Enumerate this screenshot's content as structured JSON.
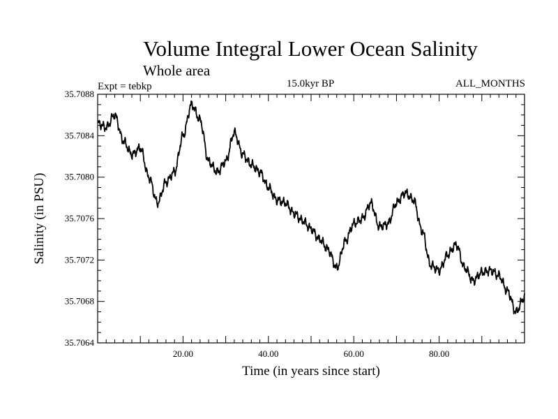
{
  "chart_data": {
    "type": "line",
    "title": "Volume Integral Lower Ocean Salinity",
    "subtitle": "Whole area",
    "experiment": "Expt = tebkp",
    "period": "15.0kyr BP",
    "months": "ALL_MONTHS",
    "xlabel": "Time (in years since start)",
    "ylabel": "Salinity (in PSU)",
    "xlim": [
      0,
      100
    ],
    "ylim": [
      35.7064,
      35.7088
    ],
    "x_ticks": [
      "20.00",
      "40.00",
      "60.00",
      "80.00"
    ],
    "y_ticks": [
      "35.7064",
      "35.7068",
      "35.7072",
      "35.7076",
      "35.7080",
      "35.7084",
      "35.7088"
    ],
    "series": [
      {
        "name": "salinity",
        "x": [
          0,
          2,
          4,
          6,
          8,
          10,
          12,
          14,
          16,
          18,
          20,
          22,
          24,
          26,
          28,
          30,
          32,
          34,
          36,
          38,
          40,
          42,
          44,
          46,
          48,
          50,
          52,
          54,
          56,
          58,
          60,
          62,
          64,
          66,
          68,
          70,
          72,
          74,
          76,
          78,
          80,
          82,
          84,
          86,
          88,
          90,
          92,
          94,
          96,
          98,
          100
        ],
        "y": [
          35.70852,
          35.70848,
          35.7086,
          35.70835,
          35.70822,
          35.70828,
          35.708,
          35.70775,
          35.70795,
          35.70805,
          35.7084,
          35.7087,
          35.70855,
          35.70815,
          35.70805,
          35.70815,
          35.70843,
          35.70822,
          35.70812,
          35.70805,
          35.7079,
          35.70778,
          35.70775,
          35.70765,
          35.70758,
          35.7075,
          35.7074,
          35.7073,
          35.70712,
          35.70738,
          35.70755,
          35.7076,
          35.70775,
          35.70752,
          35.70755,
          35.70775,
          35.70785,
          35.70778,
          35.70748,
          35.70715,
          35.7071,
          35.70725,
          35.70735,
          35.70712,
          35.707,
          35.70708,
          35.7071,
          35.70705,
          35.7069,
          35.7067,
          35.70684
        ]
      }
    ]
  }
}
